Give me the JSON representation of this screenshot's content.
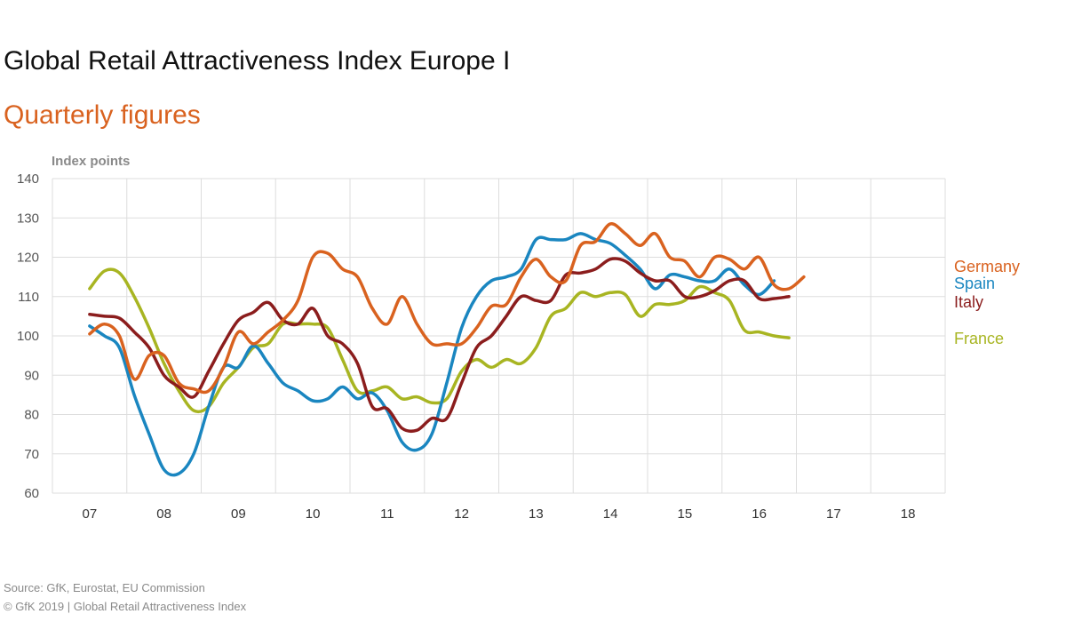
{
  "title": "Global Retail Attractiveness Index Europe I",
  "subtitle": "Quarterly figures",
  "source": "Source: GfK, Eurostat, EU Commission",
  "copyright": "© GfK 2019 | Global Retail Attractiveness Index",
  "colors": {
    "subtitle": "#d9621f",
    "Germany": "#d9621f",
    "Spain": "#1a86c0",
    "Italy": "#8b1d1d",
    "France": "#a8b522"
  },
  "chart_data": {
    "type": "line",
    "ylabel": "Index points",
    "ylim": [
      60,
      140
    ],
    "yticks": [
      60,
      70,
      80,
      90,
      100,
      110,
      120,
      130,
      140
    ],
    "years": [
      "07",
      "08",
      "09",
      "10",
      "11",
      "12",
      "13",
      "14",
      "15",
      "16",
      "17",
      "18"
    ],
    "grid": true,
    "series": [
      {
        "name": "Germany",
        "color": "#d9621f",
        "points": [
          [
            2007.0,
            100.5
          ],
          [
            2007.2,
            103
          ],
          [
            2007.4,
            100
          ],
          [
            2007.6,
            89
          ],
          [
            2007.8,
            95
          ],
          [
            2008.0,
            95
          ],
          [
            2008.2,
            88
          ],
          [
            2008.4,
            86.5
          ],
          [
            2008.6,
            86
          ],
          [
            2008.8,
            92
          ],
          [
            2009.0,
            101
          ],
          [
            2009.2,
            98
          ],
          [
            2009.4,
            101
          ],
          [
            2009.6,
            104
          ],
          [
            2009.8,
            109
          ],
          [
            2010.0,
            120
          ],
          [
            2010.2,
            121
          ],
          [
            2010.4,
            117
          ],
          [
            2010.6,
            115
          ],
          [
            2010.8,
            107
          ],
          [
            2011.0,
            103
          ],
          [
            2011.2,
            110
          ],
          [
            2011.4,
            103
          ],
          [
            2011.6,
            98
          ],
          [
            2011.8,
            98
          ],
          [
            2012.0,
            98
          ],
          [
            2012.2,
            102
          ],
          [
            2012.4,
            107.5
          ],
          [
            2012.6,
            108
          ],
          [
            2012.8,
            115
          ],
          [
            2013.0,
            119.5
          ],
          [
            2013.2,
            115
          ],
          [
            2013.4,
            114
          ],
          [
            2013.6,
            123
          ],
          [
            2013.8,
            124
          ],
          [
            2014.0,
            128.5
          ],
          [
            2014.2,
            126
          ],
          [
            2014.4,
            123
          ],
          [
            2014.6,
            126
          ],
          [
            2014.8,
            120
          ],
          [
            2015.0,
            119
          ],
          [
            2015.2,
            115
          ],
          [
            2015.4,
            120
          ],
          [
            2015.6,
            119.5
          ],
          [
            2015.8,
            117
          ],
          [
            2016.0,
            120
          ],
          [
            2016.2,
            113
          ],
          [
            2016.4,
            112
          ],
          [
            2016.6,
            115
          ]
        ]
      },
      {
        "name": "Spain",
        "color": "#1a86c0",
        "points": [
          [
            2007.0,
            102.5
          ],
          [
            2007.2,
            100
          ],
          [
            2007.4,
            97
          ],
          [
            2007.6,
            85
          ],
          [
            2007.8,
            75
          ],
          [
            2008.0,
            66
          ],
          [
            2008.2,
            65
          ],
          [
            2008.4,
            70
          ],
          [
            2008.6,
            82
          ],
          [
            2008.8,
            92
          ],
          [
            2009.0,
            92
          ],
          [
            2009.2,
            97.5
          ],
          [
            2009.4,
            93
          ],
          [
            2009.6,
            88
          ],
          [
            2009.8,
            86
          ],
          [
            2010.0,
            83.5
          ],
          [
            2010.2,
            84
          ],
          [
            2010.4,
            87
          ],
          [
            2010.6,
            84
          ],
          [
            2010.8,
            85.5
          ],
          [
            2011.0,
            81
          ],
          [
            2011.2,
            73
          ],
          [
            2011.4,
            71
          ],
          [
            2011.6,
            75
          ],
          [
            2011.8,
            88
          ],
          [
            2012.0,
            102
          ],
          [
            2012.2,
            110
          ],
          [
            2012.4,
            114
          ],
          [
            2012.6,
            115
          ],
          [
            2012.8,
            117
          ],
          [
            2013.0,
            124.5
          ],
          [
            2013.2,
            124.5
          ],
          [
            2013.4,
            124.5
          ],
          [
            2013.6,
            126
          ],
          [
            2013.8,
            124.5
          ],
          [
            2014.0,
            123.5
          ],
          [
            2014.2,
            120.5
          ],
          [
            2014.4,
            117
          ],
          [
            2014.6,
            112
          ],
          [
            2014.8,
            115.5
          ],
          [
            2015.0,
            115
          ],
          [
            2015.2,
            114
          ],
          [
            2015.4,
            114
          ],
          [
            2015.6,
            117
          ],
          [
            2015.8,
            113
          ],
          [
            2016.0,
            110.5
          ],
          [
            2016.2,
            114
          ]
        ]
      },
      {
        "name": "Italy",
        "color": "#8b1d1d",
        "points": [
          [
            2007.0,
            105.5
          ],
          [
            2007.2,
            105
          ],
          [
            2007.4,
            104.5
          ],
          [
            2007.6,
            101
          ],
          [
            2007.8,
            97
          ],
          [
            2008.0,
            90
          ],
          [
            2008.2,
            87
          ],
          [
            2008.4,
            84.5
          ],
          [
            2008.6,
            91
          ],
          [
            2008.8,
            98
          ],
          [
            2009.0,
            104
          ],
          [
            2009.2,
            106
          ],
          [
            2009.4,
            108.5
          ],
          [
            2009.6,
            104
          ],
          [
            2009.8,
            103
          ],
          [
            2010.0,
            107
          ],
          [
            2010.2,
            100
          ],
          [
            2010.4,
            98
          ],
          [
            2010.6,
            93
          ],
          [
            2010.8,
            82
          ],
          [
            2011.0,
            81.5
          ],
          [
            2011.2,
            76.5
          ],
          [
            2011.4,
            76
          ],
          [
            2011.6,
            79
          ],
          [
            2011.8,
            79
          ],
          [
            2012.0,
            88
          ],
          [
            2012.2,
            97
          ],
          [
            2012.4,
            100
          ],
          [
            2012.6,
            105
          ],
          [
            2012.8,
            110
          ],
          [
            2013.0,
            109
          ],
          [
            2013.2,
            109
          ],
          [
            2013.4,
            115.5
          ],
          [
            2013.6,
            116
          ],
          [
            2013.8,
            117
          ],
          [
            2014.0,
            119.5
          ],
          [
            2014.2,
            119
          ],
          [
            2014.4,
            116
          ],
          [
            2014.6,
            114
          ],
          [
            2014.8,
            114
          ],
          [
            2015.0,
            110
          ],
          [
            2015.2,
            110
          ],
          [
            2015.4,
            111.5
          ],
          [
            2015.6,
            114
          ],
          [
            2015.8,
            114
          ],
          [
            2016.0,
            109.5
          ],
          [
            2016.2,
            109.5
          ],
          [
            2016.4,
            110
          ]
        ]
      },
      {
        "name": "France",
        "color": "#a8b522",
        "points": [
          [
            2007.0,
            112
          ],
          [
            2007.2,
            116.5
          ],
          [
            2007.4,
            116
          ],
          [
            2007.6,
            110
          ],
          [
            2007.8,
            102
          ],
          [
            2008.0,
            93
          ],
          [
            2008.2,
            86
          ],
          [
            2008.4,
            81
          ],
          [
            2008.6,
            82
          ],
          [
            2008.8,
            88
          ],
          [
            2009.0,
            92
          ],
          [
            2009.2,
            97
          ],
          [
            2009.4,
            98
          ],
          [
            2009.6,
            103
          ],
          [
            2009.8,
            103
          ],
          [
            2010.0,
            103
          ],
          [
            2010.2,
            102
          ],
          [
            2010.4,
            94
          ],
          [
            2010.6,
            86
          ],
          [
            2010.8,
            86
          ],
          [
            2011.0,
            87
          ],
          [
            2011.2,
            84
          ],
          [
            2011.4,
            84.5
          ],
          [
            2011.6,
            83
          ],
          [
            2011.8,
            84
          ],
          [
            2012.0,
            91
          ],
          [
            2012.2,
            94
          ],
          [
            2012.4,
            92
          ],
          [
            2012.6,
            94
          ],
          [
            2012.8,
            93
          ],
          [
            2013.0,
            97
          ],
          [
            2013.2,
            105
          ],
          [
            2013.4,
            107
          ],
          [
            2013.6,
            111
          ],
          [
            2013.8,
            110
          ],
          [
            2014.0,
            111
          ],
          [
            2014.2,
            110.5
          ],
          [
            2014.4,
            105
          ],
          [
            2014.6,
            108
          ],
          [
            2014.8,
            108
          ],
          [
            2015.0,
            109
          ],
          [
            2015.2,
            112.5
          ],
          [
            2015.4,
            111
          ],
          [
            2015.6,
            109
          ],
          [
            2015.8,
            101.5
          ],
          [
            2016.0,
            101
          ],
          [
            2016.2,
            100
          ],
          [
            2016.4,
            99.5
          ]
        ]
      }
    ]
  }
}
